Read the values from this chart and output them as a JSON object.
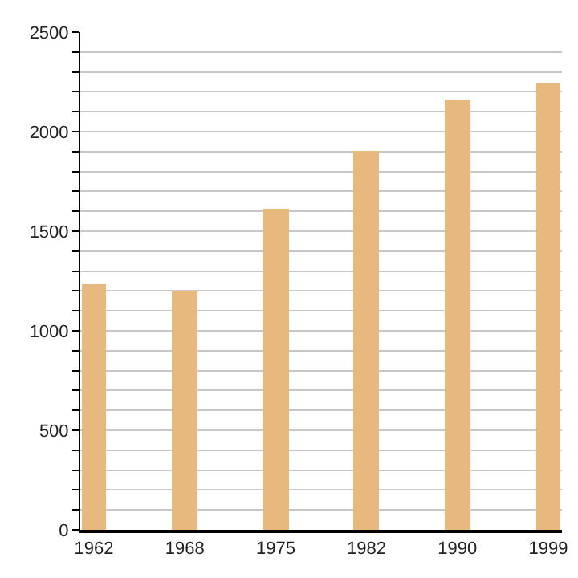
{
  "chart_data": {
    "type": "bar",
    "categories": [
      "1962",
      "1968",
      "1975",
      "1982",
      "1990",
      "1999"
    ],
    "values": [
      1230,
      1200,
      1610,
      1900,
      2160,
      2240
    ],
    "color": "#e8b97e",
    "ylim": [
      0,
      2500
    ],
    "yticks": [
      0,
      {
        "value": 100,
        "label": null
      },
      {
        "value": 200,
        "label": null
      },
      {
        "value": 300,
        "label": null
      },
      {
        "value": 400,
        "label": null
      },
      500,
      {
        "value": 600,
        "label": null
      },
      {
        "value": 700,
        "label": null
      },
      {
        "value": 800,
        "label": null
      },
      {
        "value": 900,
        "label": null
      },
      1000,
      {
        "value": 1100,
        "label": null
      },
      {
        "value": 1200,
        "label": null
      },
      {
        "value": 1300,
        "label": null
      },
      {
        "value": 1400,
        "label": null
      },
      1500,
      {
        "value": 1600,
        "label": null
      },
      {
        "value": 1700,
        "label": null
      },
      {
        "value": 1800,
        "label": null
      },
      {
        "value": 1900,
        "label": null
      },
      2000,
      {
        "value": 2100,
        "label": null
      },
      {
        "value": 2200,
        "label": null
      },
      {
        "value": 2300,
        "label": null
      },
      {
        "value": 2400,
        "label": null
      },
      2500
    ],
    "grid": "y"
  }
}
